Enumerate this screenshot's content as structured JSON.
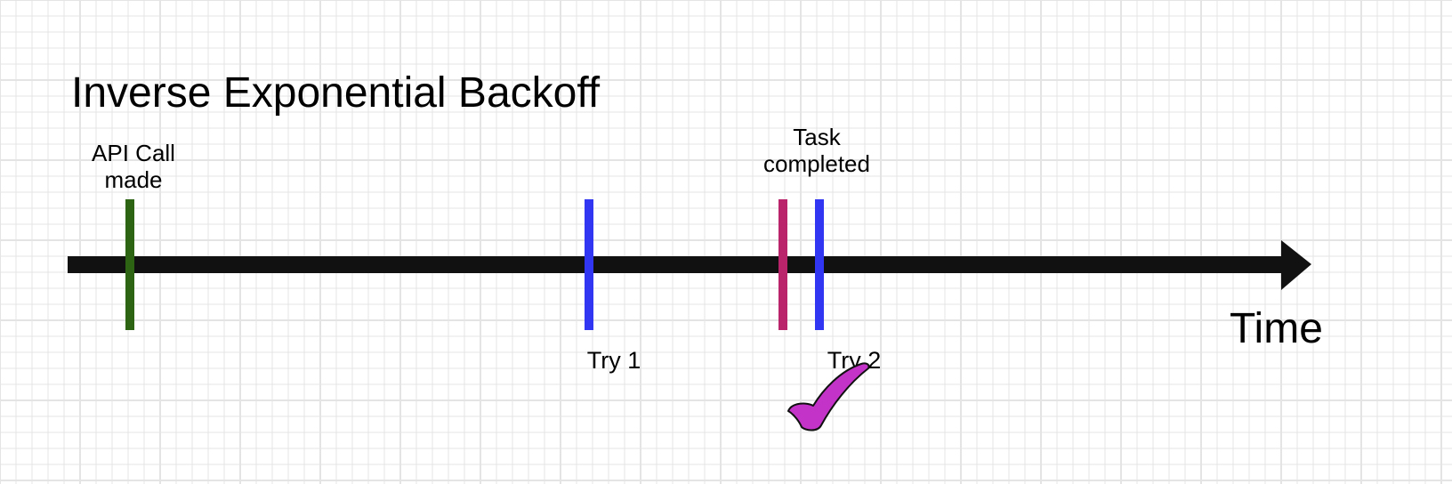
{
  "diagram": {
    "title": "Inverse Exponential Backoff",
    "axis_label": "Time",
    "events": [
      {
        "id": "api-call",
        "label": "API Call made",
        "label_lines": [
          "API Call",
          "made"
        ],
        "color": "#2c6414"
      },
      {
        "id": "try-1",
        "label": "Try 1",
        "color": "#3036f2"
      },
      {
        "id": "task-completed",
        "label": "Task completed",
        "label_lines": [
          "Task",
          "completed"
        ],
        "color": "#b9246a"
      },
      {
        "id": "try-2",
        "label": "Try 2",
        "color": "#3036f2"
      }
    ],
    "success_mark": {
      "icon": "checkmark-icon",
      "color": "#c433c8"
    },
    "colors": {
      "background": "#ffffff",
      "grid": "#e4e4e4",
      "axis": "#111111"
    }
  }
}
